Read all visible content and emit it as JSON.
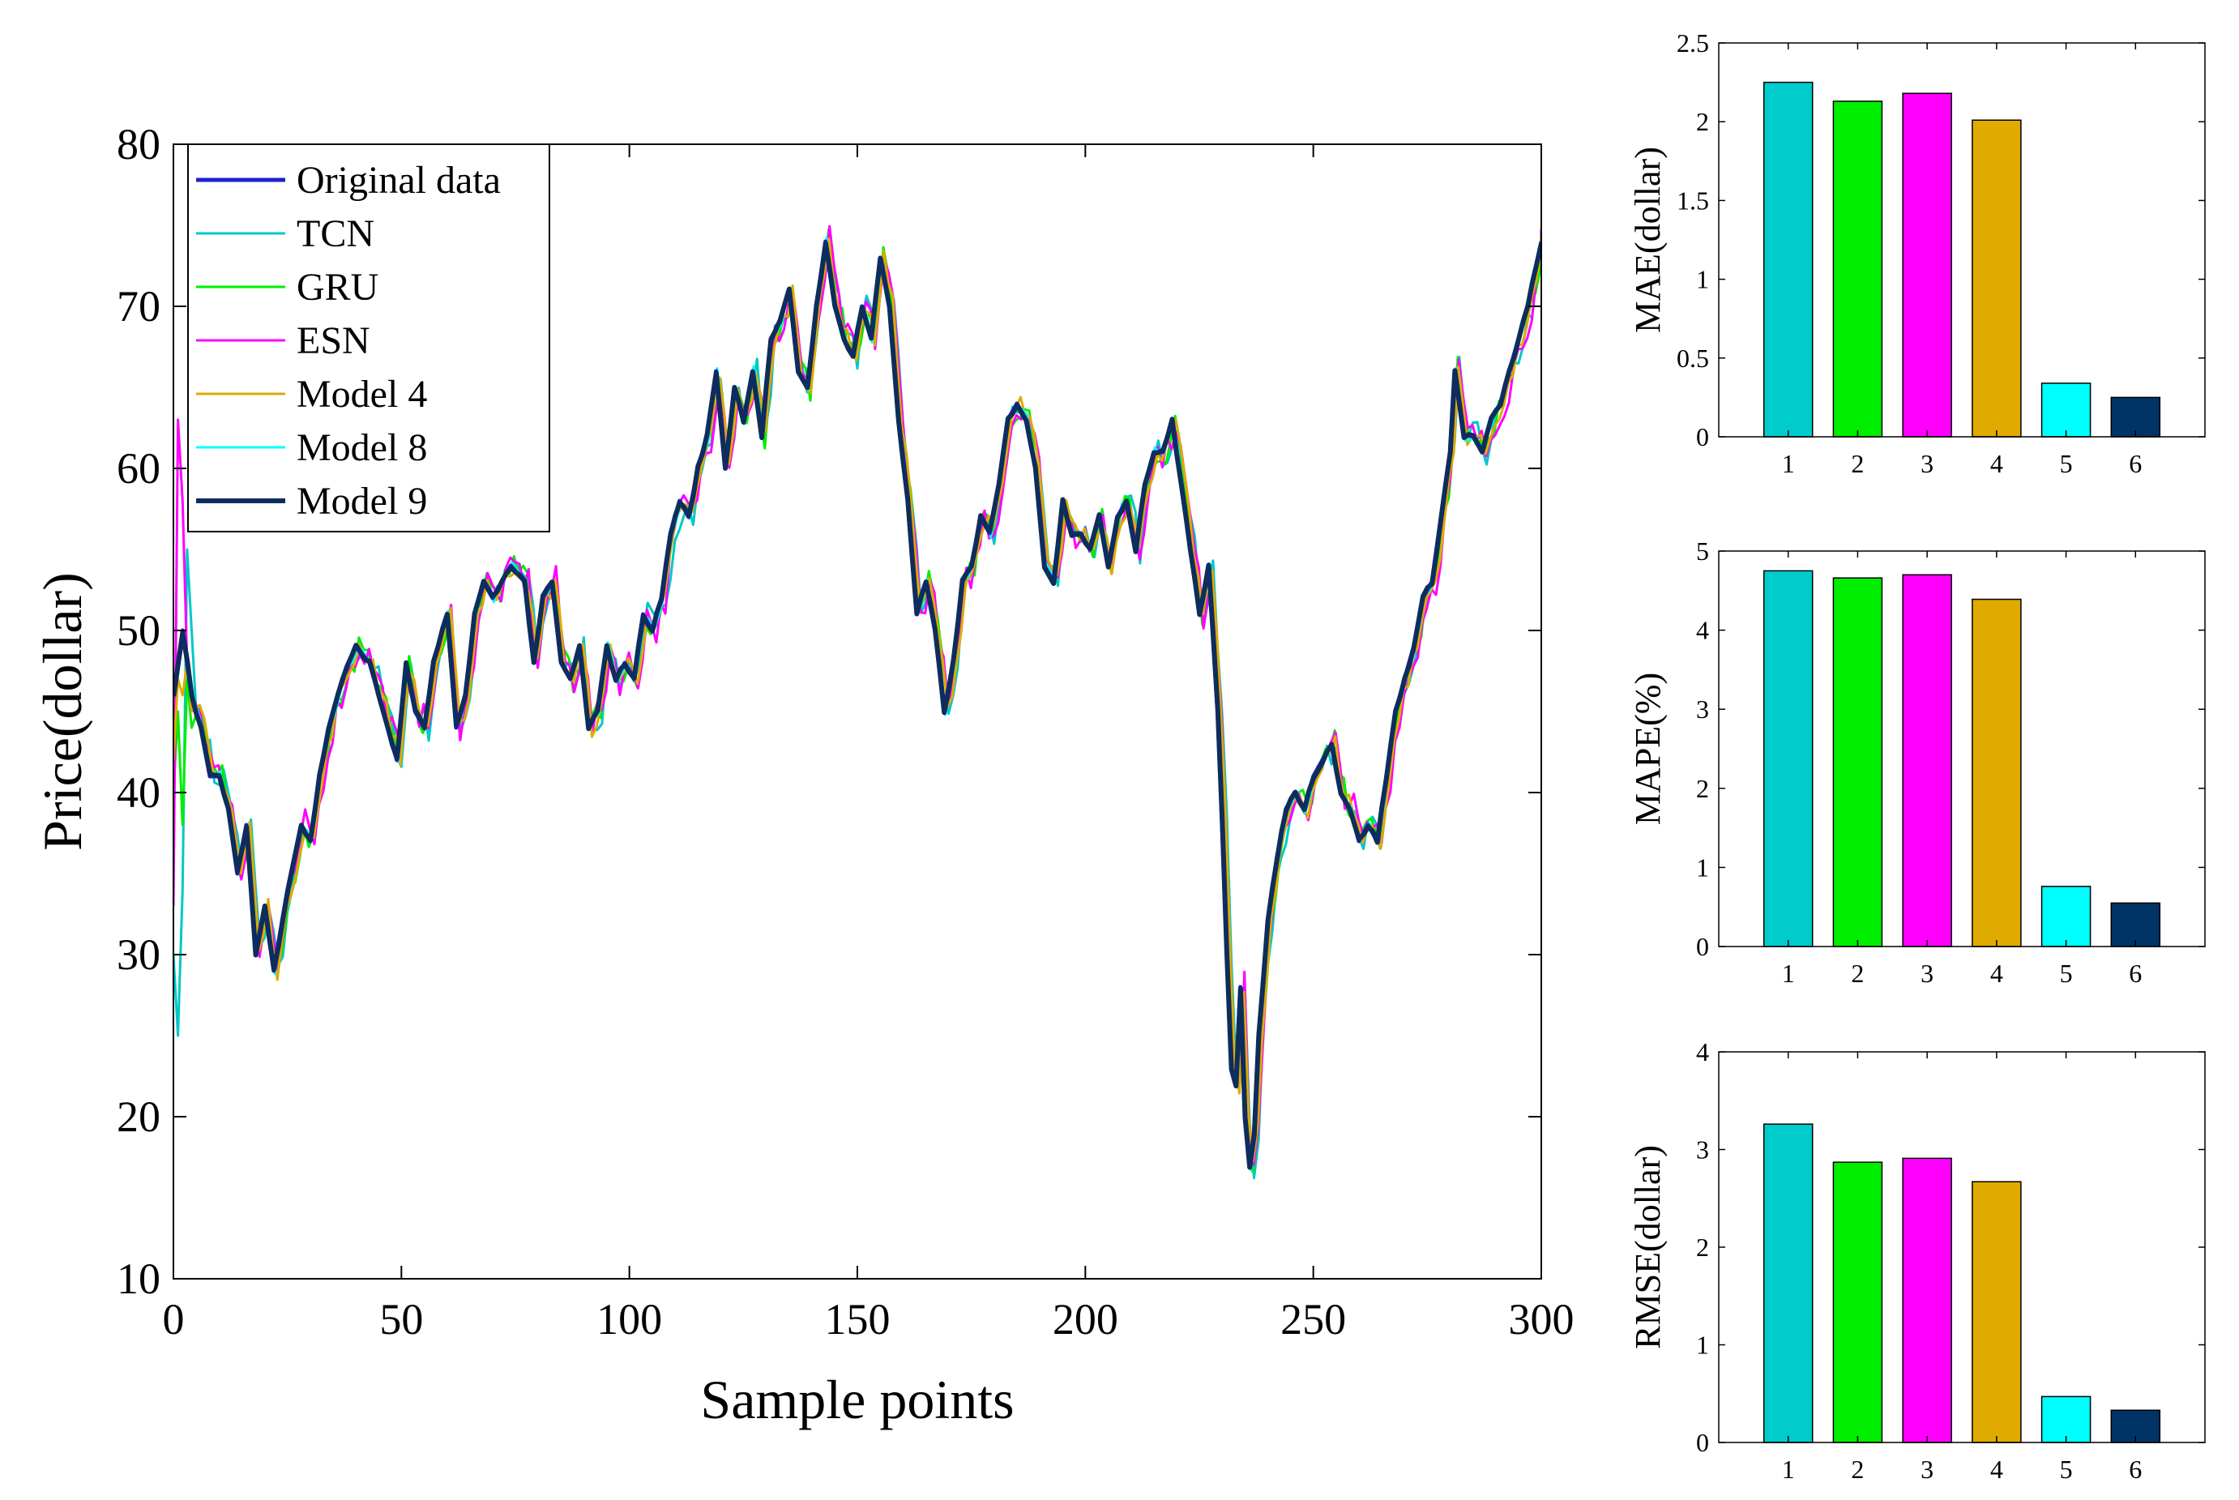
{
  "chart_data": [
    {
      "type": "line",
      "xlabel": "Sample points",
      "ylabel": "Price(dollar)",
      "xlim": [
        0,
        300
      ],
      "ylim": [
        10,
        80
      ],
      "xticks": [
        "0",
        "50",
        "100",
        "150",
        "200",
        "250",
        "300"
      ],
      "yticks": [
        "10",
        "20",
        "30",
        "40",
        "50",
        "60",
        "70",
        "80"
      ],
      "legend_position": "top-left",
      "original": [
        [
          0,
          46
        ],
        [
          2,
          50
        ],
        [
          4,
          46
        ],
        [
          6,
          44
        ],
        [
          8,
          41
        ],
        [
          10,
          41
        ],
        [
          12,
          39
        ],
        [
          14,
          35
        ],
        [
          16,
          38
        ],
        [
          18,
          30
        ],
        [
          20,
          33
        ],
        [
          22,
          29
        ],
        [
          25,
          34
        ],
        [
          28,
          38
        ],
        [
          30,
          37
        ],
        [
          32,
          41
        ],
        [
          34,
          44
        ],
        [
          37,
          47
        ],
        [
          40,
          49
        ],
        [
          43,
          48
        ],
        [
          46,
          45
        ],
        [
          49,
          42
        ],
        [
          51,
          48
        ],
        [
          53,
          45
        ],
        [
          55,
          44
        ],
        [
          57,
          48
        ],
        [
          60,
          51
        ],
        [
          62,
          44
        ],
        [
          64,
          46
        ],
        [
          66,
          51
        ],
        [
          68,
          53
        ],
        [
          70,
          52
        ],
        [
          72,
          53
        ],
        [
          74,
          54
        ],
        [
          77,
          53
        ],
        [
          79,
          48
        ],
        [
          81,
          52
        ],
        [
          83,
          53
        ],
        [
          85,
          48
        ],
        [
          87,
          47
        ],
        [
          89,
          49
        ],
        [
          91,
          44
        ],
        [
          93,
          45
        ],
        [
          95,
          49
        ],
        [
          97,
          47
        ],
        [
          99,
          48
        ],
        [
          101,
          47
        ],
        [
          103,
          51
        ],
        [
          105,
          50
        ],
        [
          107,
          52
        ],
        [
          109,
          56
        ],
        [
          111,
          58
        ],
        [
          113,
          57
        ],
        [
          115,
          60
        ],
        [
          117,
          62
        ],
        [
          119,
          66
        ],
        [
          121,
          60
        ],
        [
          123,
          65
        ],
        [
          125,
          63
        ],
        [
          127,
          66
        ],
        [
          129,
          62
        ],
        [
          131,
          68
        ],
        [
          133,
          69
        ],
        [
          135,
          71
        ],
        [
          137,
          66
        ],
        [
          139,
          65
        ],
        [
          141,
          70
        ],
        [
          143,
          74
        ],
        [
          145,
          70
        ],
        [
          147,
          68
        ],
        [
          149,
          67
        ],
        [
          151,
          70
        ],
        [
          153,
          68
        ],
        [
          155,
          73
        ],
        [
          157,
          70
        ],
        [
          159,
          63
        ],
        [
          161,
          58
        ],
        [
          163,
          51
        ],
        [
          165,
          53
        ],
        [
          167,
          50
        ],
        [
          169,
          45
        ],
        [
          171,
          48
        ],
        [
          173,
          53
        ],
        [
          175,
          54
        ],
        [
          177,
          57
        ],
        [
          179,
          56
        ],
        [
          181,
          59
        ],
        [
          183,
          63
        ],
        [
          185,
          64
        ],
        [
          187,
          63
        ],
        [
          189,
          60
        ],
        [
          191,
          54
        ],
        [
          193,
          53
        ],
        [
          195,
          58
        ],
        [
          197,
          56
        ],
        [
          199,
          56
        ],
        [
          201,
          55
        ],
        [
          203,
          57
        ],
        [
          205,
          54
        ],
        [
          207,
          57
        ],
        [
          209,
          58
        ],
        [
          211,
          55
        ],
        [
          213,
          59
        ],
        [
          215,
          61
        ],
        [
          217,
          61
        ],
        [
          219,
          63
        ],
        [
          221,
          59
        ],
        [
          223,
          55
        ],
        [
          225,
          51
        ],
        [
          227,
          54
        ],
        [
          229,
          45
        ],
        [
          230,
          38
        ],
        [
          231,
          30
        ],
        [
          232,
          23
        ],
        [
          233,
          22
        ],
        [
          234,
          28
        ],
        [
          235,
          20
        ],
        [
          236,
          17
        ],
        [
          237,
          19
        ],
        [
          238,
          25
        ],
        [
          240,
          32
        ],
        [
          242,
          36
        ],
        [
          244,
          39
        ],
        [
          246,
          40
        ],
        [
          248,
          39
        ],
        [
          250,
          41
        ],
        [
          252,
          42
        ],
        [
          254,
          43
        ],
        [
          256,
          40
        ],
        [
          258,
          39
        ],
        [
          260,
          37
        ],
        [
          262,
          38
        ],
        [
          264,
          37
        ],
        [
          266,
          41
        ],
        [
          268,
          45
        ],
        [
          270,
          47
        ],
        [
          272,
          49
        ],
        [
          274,
          52
        ],
        [
          276,
          53
        ],
        [
          278,
          57
        ],
        [
          280,
          61
        ],
        [
          281,
          66
        ],
        [
          283,
          62
        ],
        [
          285,
          62
        ],
        [
          287,
          61
        ],
        [
          289,
          63
        ],
        [
          291,
          64
        ],
        [
          293,
          66
        ],
        [
          295,
          68
        ],
        [
          297,
          70
        ],
        [
          300,
          74
        ]
      ],
      "series": [
        {
          "name": "Original data",
          "color": "#1f1fd4",
          "width": 5
        },
        {
          "name": "TCN",
          "color": "#00c8c8",
          "width": 3
        },
        {
          "name": "GRU",
          "color": "#00ee00",
          "width": 3
        },
        {
          "name": "ESN",
          "color": "#ff00ff",
          "width": 3
        },
        {
          "name": "Model 4",
          "color": "#e0aa00",
          "width": 3
        },
        {
          "name": "Model 8",
          "color": "#00ffff",
          "width": 3
        },
        {
          "name": "Model 9",
          "color": "#0d2d5e",
          "width": 6
        }
      ],
      "start_spikes": {
        "TCN": [
          [
            0,
            30
          ],
          [
            1,
            25
          ],
          [
            2,
            34
          ],
          [
            3,
            55
          ],
          [
            5,
            45
          ]
        ],
        "GRU": [
          [
            0,
            40
          ],
          [
            1,
            45
          ],
          [
            2,
            38
          ],
          [
            3,
            47
          ],
          [
            4,
            44
          ]
        ],
        "ESN": [
          [
            0,
            33
          ],
          [
            1,
            63
          ],
          [
            2,
            58
          ],
          [
            3,
            48
          ],
          [
            4,
            46
          ]
        ],
        "Model 4": [
          [
            0,
            42
          ],
          [
            1,
            47
          ],
          [
            2,
            46
          ],
          [
            3,
            48
          ],
          [
            4,
            45
          ]
        ]
      }
    },
    {
      "type": "bar",
      "ylabel": "MAE(dollar)",
      "categories": [
        "1",
        "2",
        "3",
        "4",
        "5",
        "6"
      ],
      "values": [
        2.25,
        2.13,
        2.18,
        2.01,
        0.34,
        0.25
      ],
      "ylim": [
        0,
        2.5
      ],
      "yticks": [
        "0",
        "0.5",
        "1",
        "1.5",
        "2",
        "2.5"
      ]
    },
    {
      "type": "bar",
      "ylabel": "MAPE(%)",
      "categories": [
        "1",
        "2",
        "3",
        "4",
        "5",
        "6"
      ],
      "values": [
        4.75,
        4.66,
        4.7,
        4.39,
        0.76,
        0.55
      ],
      "ylim": [
        0,
        5
      ],
      "yticks": [
        "0",
        "1",
        "2",
        "3",
        "4",
        "5"
      ]
    },
    {
      "type": "bar",
      "ylabel": "RMSE(dollar)",
      "categories": [
        "1",
        "2",
        "3",
        "4",
        "5",
        "6"
      ],
      "values": [
        3.26,
        2.87,
        2.91,
        2.67,
        0.47,
        0.33
      ],
      "ylim": [
        0,
        4
      ],
      "yticks": [
        "0",
        "1",
        "2",
        "3",
        "4"
      ]
    }
  ],
  "bar_colors": [
    "#00cccc",
    "#00ee00",
    "#ff00ff",
    "#e0aa00",
    "#00ffff",
    "#003366"
  ]
}
